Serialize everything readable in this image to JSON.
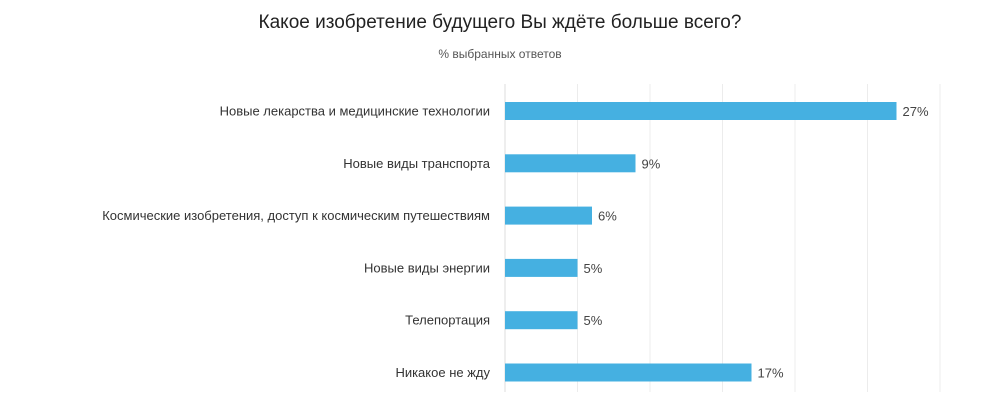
{
  "chart_data": {
    "type": "bar",
    "orientation": "horizontal",
    "title": "Какое изобретение будущего Вы ждёте больше всего?",
    "subtitle": "% выбранных ответов",
    "categories": [
      "Новые лекарства и медицинские технологии",
      "Новые виды транспорта",
      "Космические изобретения, доступ к космическим путешествиям",
      "Новые виды энергии",
      "Телепортация",
      "Никакое не жду"
    ],
    "values": [
      27,
      9,
      6,
      5,
      5,
      17
    ],
    "value_labels": [
      "27%",
      "9%",
      "6%",
      "5%",
      "5%",
      "17%"
    ],
    "xlim": [
      0,
      30
    ],
    "grid": true,
    "color": "#45b0e1"
  }
}
